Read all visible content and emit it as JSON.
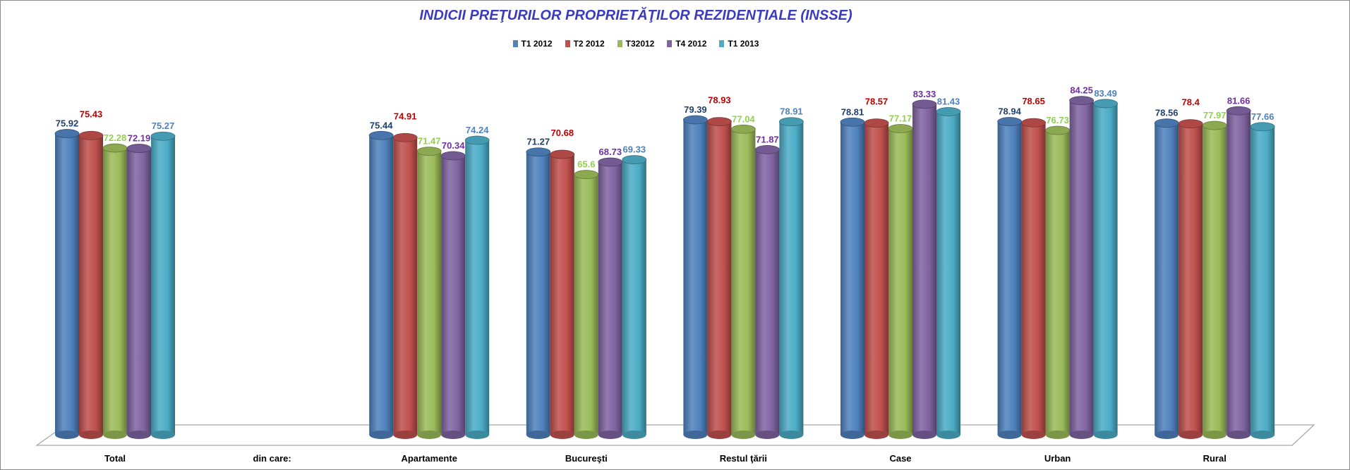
{
  "chart_data": {
    "type": "bar",
    "title": "INDICII PREŢURILOR PROPRIETĂŢILOR REZIDENŢIALE (INSSE)",
    "xlabel": "",
    "ylabel": "",
    "ylim": [
      0,
      90
    ],
    "grid": false,
    "legend_position": "top",
    "categories": [
      "Total",
      "din care:",
      "Apartamente",
      "Bucureşti",
      "Restul ţării",
      "Case",
      "Urban",
      "Rural"
    ],
    "series": [
      {
        "name": "T1 2012",
        "color": "#4f81bd",
        "label_color": "#1f3f6e",
        "values": [
          75.92,
          null,
          75.44,
          71.27,
          79.39,
          78.81,
          78.94,
          78.56
        ]
      },
      {
        "name": "T2 2012",
        "color": "#c0504d",
        "label_color": "#c00000",
        "values": [
          75.43,
          null,
          74.91,
          70.68,
          78.93,
          78.57,
          78.65,
          78.4
        ]
      },
      {
        "name": "T32012",
        "color": "#9bbb59",
        "label_color": "#92d050",
        "values": [
          72.28,
          null,
          71.47,
          65.6,
          77.04,
          77.17,
          76.73,
          77.97
        ]
      },
      {
        "name": "T4 2012",
        "color": "#8064a2",
        "label_color": "#7030a0",
        "values": [
          72.19,
          null,
          70.34,
          68.73,
          71.87,
          83.33,
          84.25,
          81.66
        ]
      },
      {
        "name": "T1 2013",
        "color": "#4bacc6",
        "label_color": "#4f81bd",
        "values": [
          75.27,
          null,
          74.24,
          69.33,
          78.91,
          81.43,
          83.49,
          77.66
        ]
      }
    ]
  }
}
